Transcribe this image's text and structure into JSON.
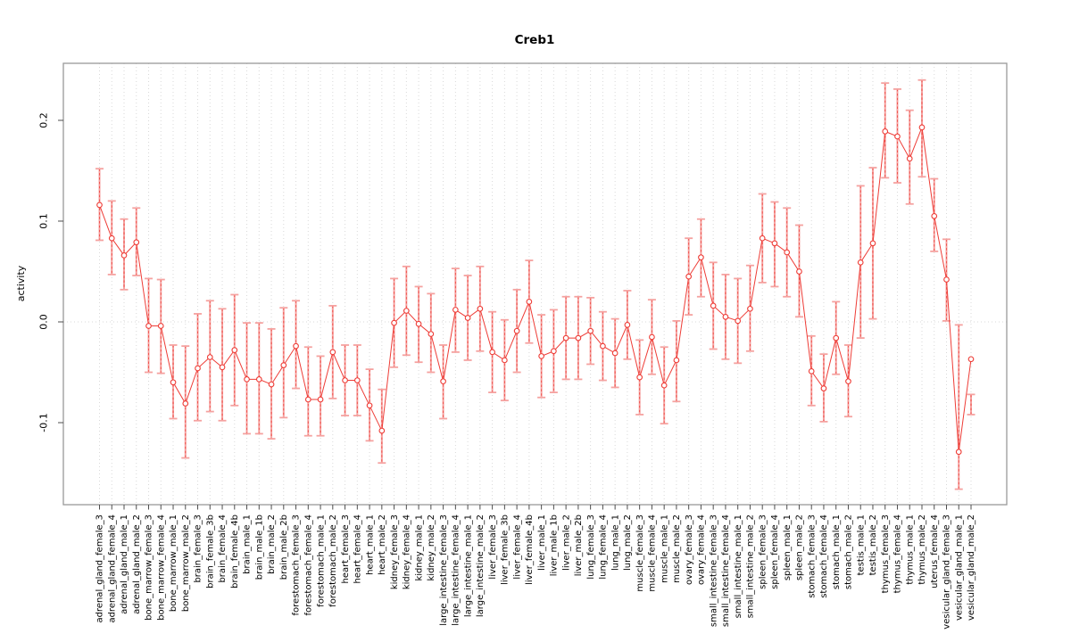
{
  "page": {
    "background": "#ffffff"
  },
  "chart_data": {
    "type": "line",
    "title": "Creb1",
    "ylabel": "activity",
    "xlabel": "",
    "legend": "none",
    "grid": "dotted vertical gridline at every category; dotted horizontal line at 0",
    "ylim": [
      -0.1814,
      0.2566
    ],
    "zero_line": 0.0,
    "yticks": [
      {
        "value": -0.1,
        "label": "-0.1"
      },
      {
        "value": 0.0,
        "label": "0.0"
      },
      {
        "value": 0.1,
        "label": "0.1"
      },
      {
        "value": 0.2,
        "label": "0.2"
      }
    ],
    "categories": [
      "adrenal_gland_female_3",
      "adrenal_gland_female_4",
      "adrenal_gland_male_1",
      "adrenal_gland_male_2",
      "bone_marrow_female_3",
      "bone_marrow_female_4",
      "bone_marrow_male_1",
      "bone_marrow_male_2",
      "brain_female_3",
      "brain_female_3b",
      "brain_female_4",
      "brain_female_4b",
      "brain_male_1",
      "brain_male_1b",
      "brain_male_2",
      "brain_male_2b",
      "forestomach_female_3",
      "forestomach_female_4",
      "forestomach_male_1",
      "forestomach_male_2",
      "heart_female_3",
      "heart_female_4",
      "heart_male_1",
      "heart_male_2",
      "kidney_female_3",
      "kidney_female_4",
      "kidney_male_1",
      "kidney_male_2",
      "large_intestine_female_3",
      "large_intestine_female_4",
      "large_intestine_male_1",
      "large_intestine_male_2",
      "liver_female_3",
      "liver_female_3b",
      "liver_female_4",
      "liver_female_4b",
      "liver_male_1",
      "liver_male_1b",
      "liver_male_2",
      "liver_male_2b",
      "lung_female_3",
      "lung_female_4",
      "lung_male_1",
      "lung_male_2",
      "muscle_female_3",
      "muscle_female_4",
      "muscle_male_1",
      "muscle_male_2",
      "ovary_female_3",
      "ovary_female_4",
      "small_intestine_female_3",
      "small_intestine_female_4",
      "small_intestine_male_1",
      "small_intestine_male_2",
      "spleen_female_3",
      "spleen_female_4",
      "spleen_male_1",
      "spleen_male_2",
      "stomach_female_3",
      "stomach_female_4",
      "stomach_male_1",
      "stomach_male_2",
      "testis_male_1",
      "testis_male_2",
      "thymus_female_3",
      "thymus_female_4",
      "thymus_male_1",
      "thymus_male_2",
      "uterus_female_4",
      "vesicular_gland_female_3",
      "vesicular_gland_male_1",
      "vesicular_gland_male_2"
    ],
    "values": [
      0.116,
      0.083,
      0.066,
      0.079,
      -0.004,
      -0.004,
      -0.06,
      -0.081,
      -0.046,
      -0.035,
      -0.045,
      -0.028,
      -0.057,
      -0.057,
      -0.062,
      -0.043,
      -0.024,
      -0.077,
      -0.077,
      -0.03,
      -0.058,
      -0.058,
      -0.083,
      -0.108,
      -0.001,
      0.011,
      -0.002,
      -0.012,
      -0.059,
      0.012,
      0.004,
      0.013,
      -0.03,
      -0.038,
      -0.009,
      0.02,
      -0.034,
      -0.029,
      -0.016,
      -0.016,
      -0.009,
      -0.024,
      -0.031,
      -0.003,
      -0.055,
      -0.015,
      -0.063,
      -0.038,
      0.045,
      0.064,
      0.016,
      0.005,
      0.001,
      0.013,
      0.083,
      0.078,
      0.069,
      0.05,
      -0.049,
      -0.066,
      -0.016,
      -0.059,
      0.059,
      0.078,
      0.189,
      0.184,
      0.162,
      0.193,
      0.105,
      0.042,
      -0.129,
      -0.037
    ],
    "error_low": [
      0.081,
      0.047,
      0.032,
      0.046,
      -0.05,
      -0.051,
      -0.096,
      -0.135,
      -0.098,
      -0.089,
      -0.098,
      -0.083,
      -0.111,
      -0.111,
      -0.116,
      -0.095,
      -0.066,
      -0.113,
      -0.113,
      -0.076,
      -0.093,
      -0.093,
      -0.118,
      -0.14,
      -0.045,
      -0.033,
      -0.04,
      -0.05,
      -0.096,
      -0.03,
      -0.038,
      -0.029,
      -0.07,
      -0.078,
      -0.05,
      -0.021,
      -0.075,
      -0.07,
      -0.057,
      -0.057,
      -0.042,
      -0.058,
      -0.065,
      -0.037,
      -0.092,
      -0.052,
      -0.101,
      -0.079,
      0.007,
      0.025,
      -0.027,
      -0.037,
      -0.041,
      -0.029,
      0.039,
      0.035,
      0.025,
      0.005,
      -0.083,
      -0.099,
      -0.052,
      -0.094,
      -0.016,
      0.003,
      0.143,
      0.138,
      0.117,
      0.144,
      0.07,
      0.001,
      -0.166,
      -0.072
    ],
    "error_high": [
      0.152,
      0.12,
      0.102,
      0.113,
      0.043,
      0.042,
      -0.023,
      -0.024,
      0.008,
      0.021,
      0.013,
      0.027,
      -0.001,
      -0.001,
      -0.007,
      0.014,
      0.021,
      -0.025,
      -0.034,
      0.016,
      -0.023,
      -0.023,
      -0.047,
      -0.067,
      0.043,
      0.055,
      0.035,
      0.028,
      -0.023,
      0.053,
      0.046,
      0.055,
      0.01,
      0.002,
      0.032,
      0.061,
      0.007,
      0.012,
      0.025,
      0.025,
      0.024,
      0.01,
      0.003,
      0.031,
      -0.018,
      0.022,
      -0.025,
      0.001,
      0.083,
      0.102,
      0.059,
      0.047,
      0.043,
      0.056,
      0.127,
      0.119,
      0.113,
      0.096,
      -0.014,
      -0.032,
      0.02,
      -0.023,
      0.135,
      0.153,
      0.237,
      0.231,
      0.21,
      0.24,
      0.142,
      0.082,
      -0.003,
      -0.092
    ],
    "colors": {
      "line": "#ee3c36",
      "point": "#ee3c36",
      "errorbar": "#f5a2a0",
      "grid": "#d9d9d9",
      "box": "#999999",
      "tick": "#4c4c4c",
      "text": "#000000"
    }
  }
}
